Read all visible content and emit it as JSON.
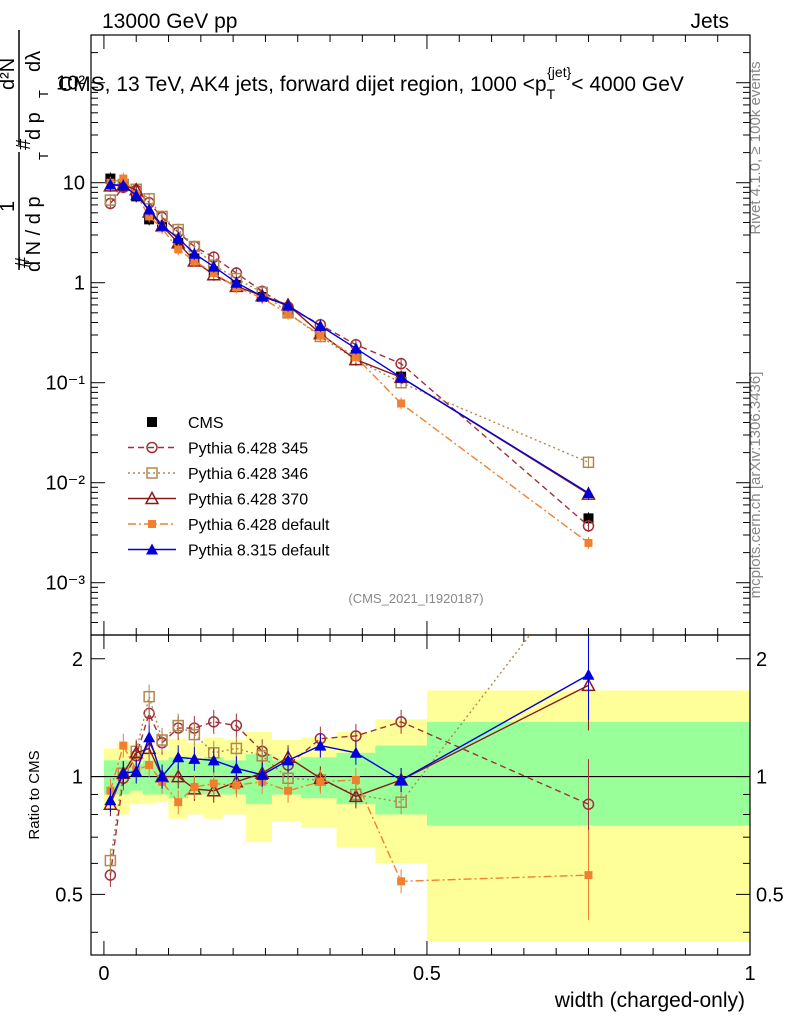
{
  "header": {
    "energy_label": "13000 GeV pp",
    "category_label": "Jets"
  },
  "side_labels": {
    "rivet": "Rivet 4.1.0, ≥ 100k events",
    "mcplots": "mcplots.cern.ch [arXiv:1306.3436]"
  },
  "chart_data": [
    {
      "type": "line",
      "title": "CMS, 13 TeV, AK4 jets, forward dijet region, 1000 <p_T^{jet}< 4000 GeV",
      "title_parts": {
        "main": "CMS, 13 TeV, AK4 jets, forward dijet region, 1000 <p",
        "sub": "T",
        "sup": "{jet}",
        "tail": "< 4000 GeV"
      },
      "ylabel": "1/dN/dpT # d2N/dpT dλ",
      "ylabel_parts": {
        "one": "1",
        "hash1": "#",
        "denom": "d N / d p",
        "sub": "T",
        "hash2": "#",
        "d2n": "d²N",
        "dp": "d p",
        "dpsub": "T",
        "dl": "dλ"
      },
      "yscale": "log",
      "ylim": [
        0.0003,
        300
      ],
      "xlim": [
        -0.02,
        1.0
      ],
      "y_tick_labels": [
        "10⁻³",
        "10⁻²",
        "10⁻¹",
        "1",
        "10",
        "10²"
      ],
      "watermark": "(CMS_2021_I1920187)",
      "legend_position": "lower-left",
      "x": [
        0.01,
        0.03,
        0.05,
        0.07,
        0.09,
        0.115,
        0.14,
        0.17,
        0.205,
        0.245,
        0.285,
        0.335,
        0.39,
        0.46,
        0.75
      ],
      "series": [
        {
          "name": "CMS",
          "color": "#000000",
          "marker": "square-filled",
          "line": "none",
          "values": [
            11.0,
            9.2,
            7.3,
            4.3,
            3.7,
            2.5,
            1.75,
            1.3,
            0.95,
            0.72,
            0.54,
            0.31,
            0.19,
            0.115,
            0.0044
          ]
        },
        {
          "name": "Pythia 6.428 345",
          "color": "#a0303a",
          "marker": "circle-open",
          "line": "dashed",
          "values": [
            6.2,
            9.0,
            8.4,
            6.3,
            4.5,
            3.2,
            2.3,
            1.8,
            1.25,
            0.82,
            0.57,
            0.38,
            0.24,
            0.155,
            0.0037
          ]
        },
        {
          "name": "Pythia 6.428 346",
          "color": "#b08850",
          "marker": "square-open",
          "line": "dotted",
          "values": [
            6.7,
            9.6,
            8.6,
            6.9,
            4.6,
            3.4,
            2.3,
            1.5,
            1.1,
            0.8,
            0.5,
            0.29,
            0.17,
            0.1,
            0.016
          ]
        },
        {
          "name": "Pythia 6.428 370",
          "color": "#8b1a1a",
          "marker": "triangle-open",
          "line": "solid",
          "values": [
            9.3,
            9.5,
            8.5,
            5.1,
            3.7,
            2.5,
            1.65,
            1.2,
            0.92,
            0.74,
            0.6,
            0.31,
            0.17,
            0.113,
            0.0077
          ]
        },
        {
          "name": "Pythia 6.428 default",
          "color": "#f08030",
          "marker": "square-filled-small",
          "line": "dashdot",
          "values": [
            10.0,
            11.0,
            7.6,
            4.6,
            3.5,
            2.15,
            1.65,
            1.25,
            0.9,
            0.7,
            0.49,
            0.3,
            0.18,
            0.062,
            0.0025
          ]
        },
        {
          "name": "Pythia 8.315 default",
          "color": "#0000dd",
          "marker": "triangle-filled",
          "line": "solid",
          "values": [
            9.6,
            9.4,
            7.5,
            5.4,
            3.7,
            2.8,
            1.95,
            1.45,
            1.0,
            0.73,
            0.59,
            0.37,
            0.22,
            0.113,
            0.0079
          ]
        }
      ]
    },
    {
      "type": "line",
      "title": "",
      "ylabel": "Ratio to CMS",
      "xlabel": "width (charged-only)",
      "ylim": [
        0.35,
        2.3
      ],
      "xlim": [
        -0.02,
        1.0
      ],
      "y_tick_labels": [
        "0.5",
        "1",
        "2"
      ],
      "y_tick_values": [
        0.5,
        1,
        2
      ],
      "x_tick_labels": [
        "0",
        "0.5",
        "1"
      ],
      "x_tick_values": [
        0,
        0.5,
        1
      ],
      "band_bins": [
        {
          "x0": 0.0,
          "x1": 0.02,
          "stat": [
            0.9,
            1.1
          ],
          "total": [
            0.82,
            1.18
          ]
        },
        {
          "x0": 0.02,
          "x1": 0.04,
          "stat": [
            0.9,
            1.1
          ],
          "total": [
            0.8,
            1.22
          ]
        },
        {
          "x0": 0.04,
          "x1": 0.06,
          "stat": [
            0.92,
            1.08
          ],
          "total": [
            0.85,
            1.16
          ]
        },
        {
          "x0": 0.06,
          "x1": 0.08,
          "stat": [
            0.9,
            1.1
          ],
          "total": [
            0.85,
            1.18
          ]
        },
        {
          "x0": 0.08,
          "x1": 0.1,
          "stat": [
            0.9,
            1.1
          ],
          "total": [
            0.86,
            1.17
          ]
        },
        {
          "x0": 0.1,
          "x1": 0.13,
          "stat": [
            0.88,
            1.12
          ],
          "total": [
            0.78,
            1.25
          ]
        },
        {
          "x0": 0.13,
          "x1": 0.155,
          "stat": [
            0.9,
            1.1
          ],
          "total": [
            0.8,
            1.22
          ]
        },
        {
          "x0": 0.155,
          "x1": 0.185,
          "stat": [
            0.9,
            1.12
          ],
          "total": [
            0.78,
            1.26
          ]
        },
        {
          "x0": 0.185,
          "x1": 0.22,
          "stat": [
            0.9,
            1.1
          ],
          "total": [
            0.8,
            1.24
          ]
        },
        {
          "x0": 0.22,
          "x1": 0.26,
          "stat": [
            0.85,
            1.14
          ],
          "total": [
            0.68,
            1.3
          ]
        },
        {
          "x0": 0.26,
          "x1": 0.305,
          "stat": [
            0.9,
            1.1
          ],
          "total": [
            0.77,
            1.24
          ]
        },
        {
          "x0": 0.305,
          "x1": 0.36,
          "stat": [
            0.88,
            1.12
          ],
          "total": [
            0.74,
            1.26
          ]
        },
        {
          "x0": 0.36,
          "x1": 0.42,
          "stat": [
            0.85,
            1.15
          ],
          "total": [
            0.66,
            1.3
          ]
        },
        {
          "x0": 0.42,
          "x1": 0.5,
          "stat": [
            0.8,
            1.2
          ],
          "total": [
            0.6,
            1.4
          ]
        },
        {
          "x0": 0.5,
          "x1": 1.0,
          "stat": [
            0.75,
            1.38
          ],
          "total": [
            0.38,
            1.66
          ]
        }
      ],
      "series": [
        {
          "name": "Pythia 6.428 345",
          "values": [
            0.56,
            0.99,
            1.13,
            1.45,
            1.22,
            1.33,
            1.33,
            1.38,
            1.35,
            1.16,
            1.07,
            1.25,
            1.27,
            1.38,
            0.85
          ]
        },
        {
          "name": "Pythia 6.428 346",
          "values": [
            0.61,
            1.02,
            1.16,
            1.6,
            1.24,
            1.35,
            1.28,
            1.15,
            1.18,
            1.13,
            0.99,
            0.98,
            0.9,
            0.86,
            3.6
          ]
        },
        {
          "name": "Pythia 6.428 370",
          "values": [
            0.85,
            1.02,
            1.15,
            1.18,
            1.0,
            1.0,
            0.93,
            0.92,
            0.97,
            1.02,
            1.12,
            0.99,
            0.89,
            0.98,
            1.71
          ]
        },
        {
          "name": "Pythia 6.428 default",
          "values": [
            0.92,
            1.2,
            1.04,
            1.07,
            0.97,
            0.86,
            0.94,
            0.96,
            0.95,
            0.97,
            0.92,
            0.97,
            0.98,
            0.54,
            0.56
          ]
        },
        {
          "name": "Pythia 8.315 default",
          "values": [
            0.87,
            1.02,
            1.03,
            1.26,
            1.0,
            1.12,
            1.11,
            1.1,
            1.05,
            1.01,
            1.1,
            1.2,
            1.15,
            0.98,
            1.82
          ]
        }
      ]
    }
  ]
}
